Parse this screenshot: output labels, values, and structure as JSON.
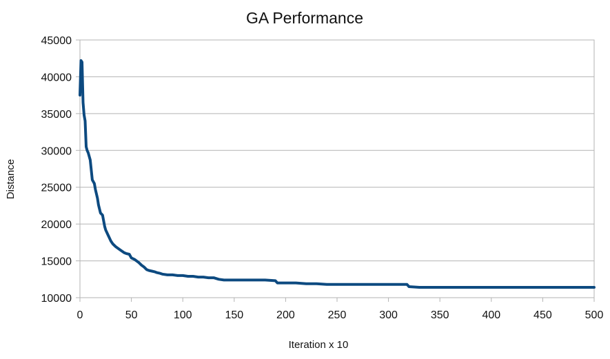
{
  "chart_data": {
    "type": "line",
    "title": "GA Performance",
    "xlabel": "Iteration x 10",
    "ylabel": "Distance",
    "xlim": [
      0,
      500
    ],
    "ylim": [
      10000,
      45000
    ],
    "xticks": [
      0,
      50,
      100,
      150,
      200,
      250,
      300,
      350,
      400,
      450,
      500
    ],
    "yticks": [
      10000,
      15000,
      20000,
      25000,
      30000,
      35000,
      40000,
      45000
    ],
    "grid": "horizontal",
    "legend": "none",
    "series": [
      {
        "color": "#0d4a80",
        "x": [
          0,
          1,
          2,
          3,
          4,
          5,
          6,
          7,
          8,
          9,
          10,
          12,
          14,
          15,
          17,
          18,
          20,
          22,
          24,
          25,
          27,
          30,
          32,
          35,
          38,
          40,
          43,
          45,
          48,
          50,
          53,
          55,
          57,
          60,
          62,
          65,
          67,
          70,
          73,
          75,
          78,
          80,
          85,
          90,
          95,
          100,
          105,
          110,
          115,
          120,
          125,
          130,
          135,
          140,
          145,
          150,
          160,
          170,
          180,
          190,
          192,
          200,
          210,
          220,
          230,
          240,
          250,
          260,
          270,
          280,
          290,
          300,
          310,
          318,
          320,
          330,
          340,
          350,
          360,
          380,
          400,
          420,
          440,
          460,
          480,
          500
        ],
        "y": [
          37500,
          42200,
          42000,
          36500,
          34800,
          34000,
          30500,
          30000,
          29700,
          29200,
          28700,
          26000,
          25500,
          24700,
          23500,
          22600,
          21500,
          21200,
          19700,
          19200,
          18600,
          17700,
          17300,
          16900,
          16600,
          16400,
          16100,
          16000,
          15900,
          15400,
          15200,
          15000,
          14800,
          14400,
          14200,
          13800,
          13700,
          13600,
          13500,
          13400,
          13300,
          13200,
          13100,
          13100,
          13000,
          13000,
          12900,
          12900,
          12800,
          12800,
          12700,
          12700,
          12500,
          12400,
          12400,
          12400,
          12400,
          12400,
          12400,
          12300,
          12000,
          12000,
          12000,
          11900,
          11900,
          11800,
          11800,
          11800,
          11800,
          11800,
          11800,
          11800,
          11800,
          11800,
          11500,
          11400,
          11400,
          11400,
          11400,
          11400,
          11400,
          11400,
          11400,
          11400,
          11400,
          11400
        ]
      }
    ]
  }
}
